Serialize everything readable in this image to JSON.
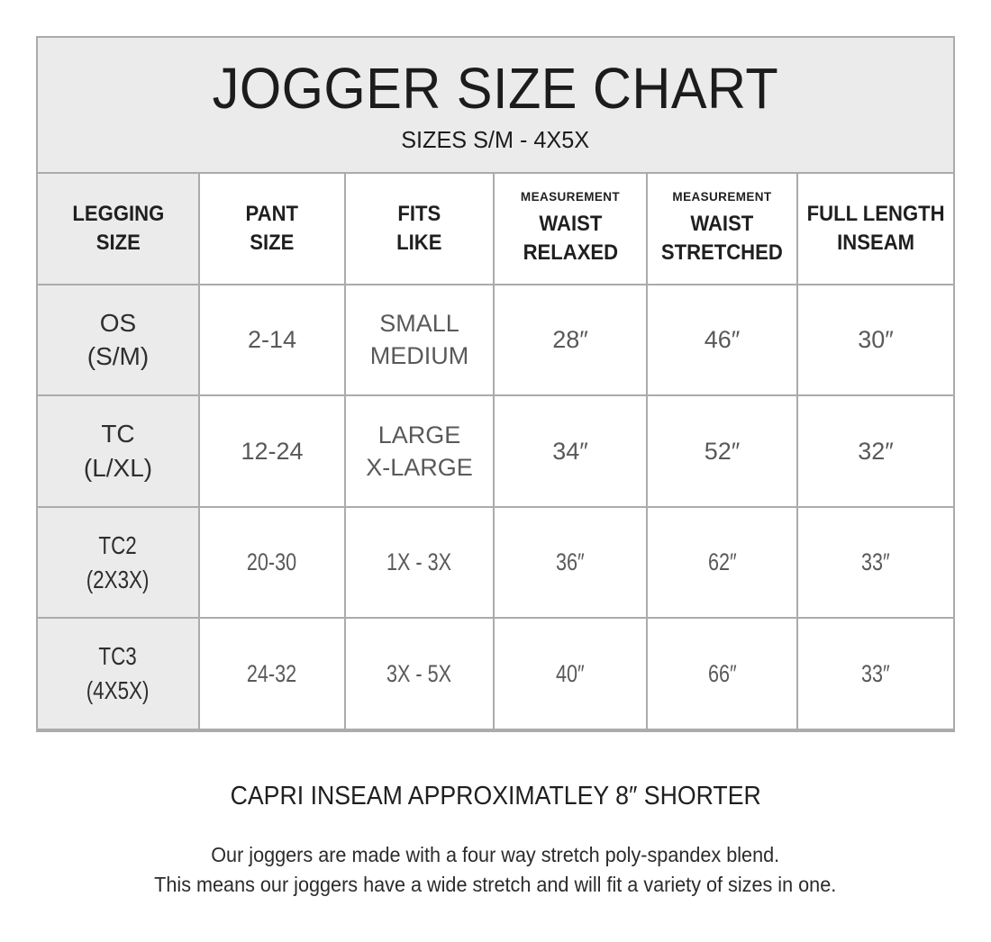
{
  "header": {
    "title": "JOGGER SIZE CHART",
    "subtitle": "SIZES S/M - 4X5X"
  },
  "chart_data": {
    "type": "table",
    "title": "JOGGER SIZE CHART",
    "subtitle": "SIZES S/M - 4X5X",
    "column_superlabels": [
      "",
      "",
      "",
      "MEASUREMENT",
      "MEASUREMENT",
      ""
    ],
    "columns": [
      "LEGGING\nSIZE",
      "PANT\nSIZE",
      "FITS\nLIKE",
      "WAIST\nRELAXED",
      "WAIST\nSTRETCHED",
      "FULL LENGTH\nINSEAM"
    ],
    "rows": [
      [
        "OS\n(S/M)",
        "2-14",
        "SMALL\nMEDIUM",
        "28″",
        "46″",
        "30″"
      ],
      [
        "TC\n(L/XL)",
        "12-24",
        "LARGE\nX-LARGE",
        "34″",
        "52″",
        "32″"
      ],
      [
        "TC2\n(2X3X)",
        "20-30",
        "1X - 3X",
        "36″",
        "62″",
        "33″"
      ],
      [
        "TC3\n(4X5X)",
        "24-32",
        "3X - 5X",
        "40″",
        "66″",
        "33″"
      ]
    ]
  },
  "notes": {
    "capri": "CAPRI INSEAM APPROXIMATLEY 8″ SHORTER",
    "description_line1": "Our joggers are made with a four way stretch poly-spandex blend.",
    "description_line2": "This means our joggers have a wide stretch and will fit a variety of sizes in one.",
    "description": "Our joggers are made with a four way stretch poly-spandex blend.\nThis means our joggers have a wide stretch and will fit a variety of sizes in one."
  },
  "colors": {
    "shaded_cell": "#ebebeb",
    "border": "#ababab",
    "heading_text": "#1f1f1f",
    "data_text": "#58595b"
  }
}
